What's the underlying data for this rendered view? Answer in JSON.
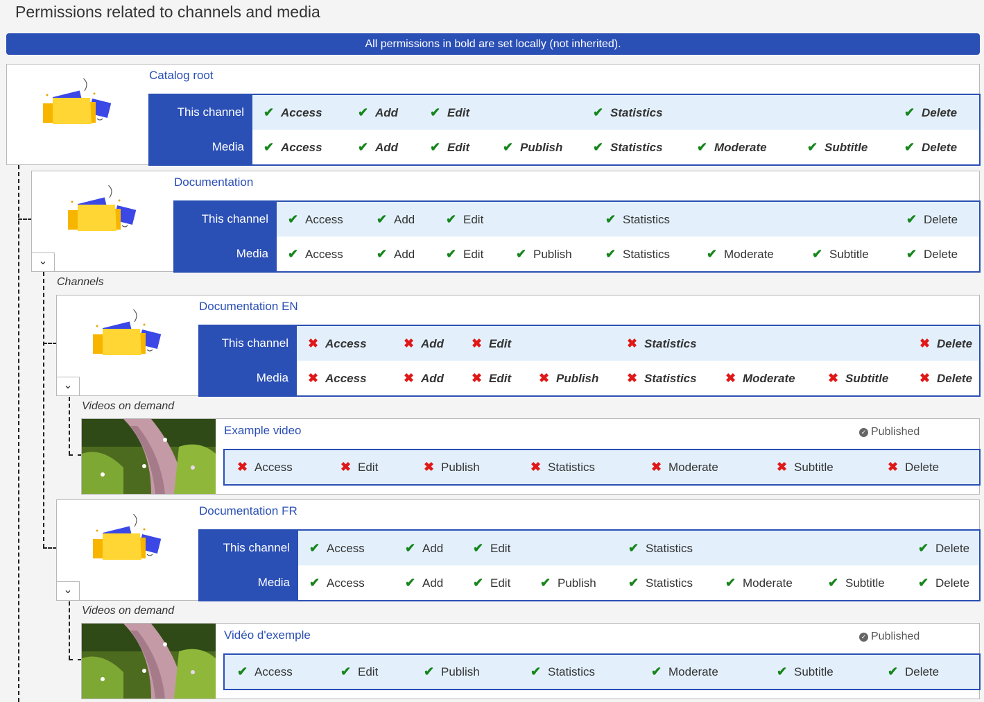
{
  "page_title": "Permissions related to channels and media",
  "banner": "All permissions in bold are set locally (not inherited).",
  "labels": {
    "this_channel": "This channel",
    "media": "Media"
  },
  "perm_labels": {
    "access": "Access",
    "add": "Add",
    "edit": "Edit",
    "publish": "Publish",
    "statistics": "Statistics",
    "moderate": "Moderate",
    "subtitle": "Subtitle",
    "delete": "Delete"
  },
  "sections": {
    "channels": "Channels",
    "videos": "Videos on demand"
  },
  "catalog_root": {
    "name": "Catalog root",
    "local": true,
    "channel_perms": "allowed",
    "media_perms": "allowed"
  },
  "documentation": {
    "name": "Documentation",
    "local": false,
    "channel_perms": "allowed",
    "media_perms": "allowed"
  },
  "documentation_en": {
    "name": "Documentation EN",
    "local": true,
    "channel_perms": "denied",
    "media_perms": "denied",
    "video": {
      "name": "Example video",
      "status": "Published",
      "perms": "denied"
    }
  },
  "documentation_fr": {
    "name": "Documentation FR",
    "local": false,
    "channel_perms": "allowed",
    "media_perms": "allowed",
    "video": {
      "name": "Vidéo d'exemple",
      "status": "Published",
      "perms": "allowed"
    }
  },
  "icons": {
    "allowed": "check-icon",
    "denied": "cross-icon",
    "folder": "folder-icon",
    "collapse": "chevron-down-icon",
    "status": "check-circle-icon"
  },
  "colors": {
    "accent": "#2a4fb5",
    "allowed": "#16861c",
    "denied": "#e01818",
    "row_tint": "#e3f0fc"
  }
}
